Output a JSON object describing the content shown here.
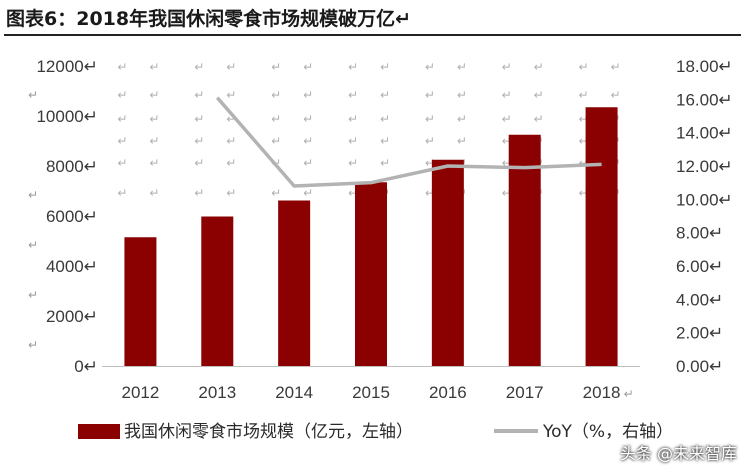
{
  "figure": {
    "title": "图表6：2018年我国休闲零食市场规模破万亿↵",
    "watermark": "头条 @未来智库"
  },
  "chart_data": {
    "type": "bar",
    "categories": [
      "2012",
      "2013",
      "2014",
      "2015",
      "2016",
      "2017",
      "2018"
    ],
    "category_suffix": [
      "",
      "",
      "",
      "",
      "",
      "",
      "↵"
    ],
    "series": [
      {
        "name": "我国休闲零食市场规模（亿元，左轴）",
        "kind": "bar",
        "axis": "left",
        "values": [
          5150,
          5980,
          6620,
          7350,
          8250,
          9250,
          10350
        ],
        "color": "#8b0000"
      },
      {
        "name": "YoY（%，右轴）",
        "kind": "line",
        "axis": "right",
        "values": [
          null,
          16.1,
          10.8,
          11.0,
          12.0,
          11.9,
          12.1
        ],
        "color": "#b3b3b3"
      }
    ],
    "y_left": {
      "min": 0,
      "max": 12000,
      "ticks": [
        0,
        2000,
        4000,
        6000,
        8000,
        10000,
        12000
      ],
      "tick_labels": [
        "0↵",
        "2000↵",
        "4000↵",
        "6000↵",
        "8000↵",
        "10000↵",
        "12000↵"
      ]
    },
    "y_right": {
      "min": 0,
      "max": 18,
      "ticks": [
        0,
        2,
        4,
        6,
        8,
        10,
        12,
        14,
        16,
        18
      ],
      "tick_labels": [
        "0.00↵",
        "2.00↵",
        "4.00↵",
        "6.00↵",
        "8.00↵",
        "10.00↵",
        "12.00↵",
        "14.00↵",
        "16.00↵",
        "18.00↵"
      ]
    },
    "left_extra_marks": [
      "↵",
      "↵",
      "↵",
      "↵",
      "↵",
      "↵"
    ],
    "cell_mark": "↵",
    "legend": {
      "position": "bottom",
      "bar_label": "我国休闲零食市场规模（亿元，左轴）",
      "line_label": "YoY（%，右轴）"
    },
    "grid": false
  }
}
